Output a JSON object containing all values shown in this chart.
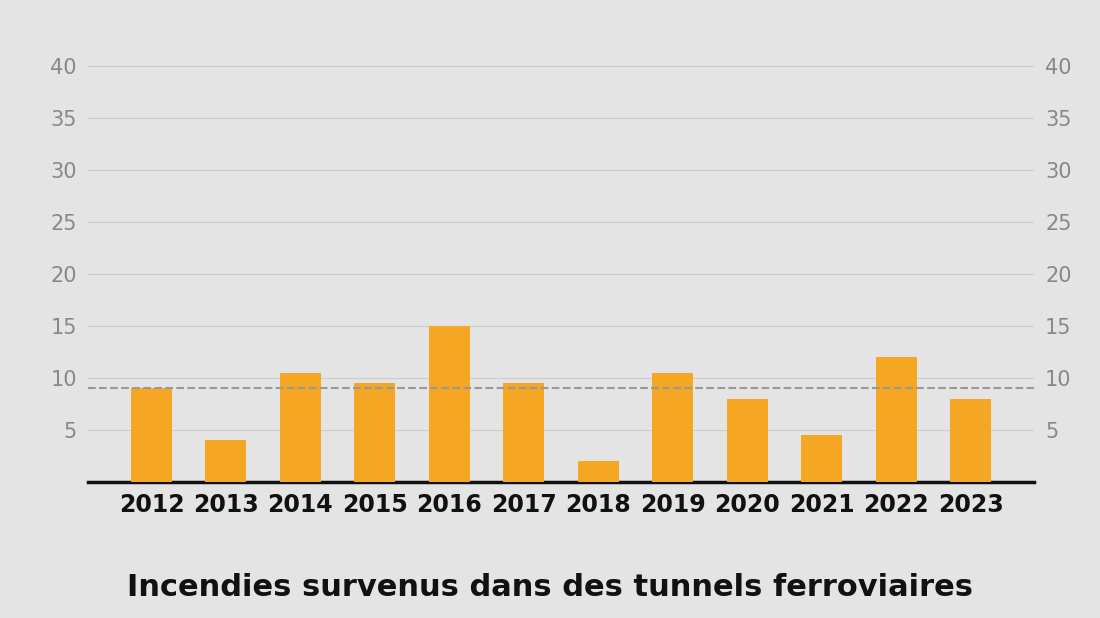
{
  "years": [
    2012,
    2013,
    2014,
    2015,
    2016,
    2017,
    2018,
    2019,
    2020,
    2021,
    2022,
    2023
  ],
  "values": [
    9,
    4,
    10.5,
    9.5,
    15,
    9.5,
    2,
    10.5,
    8,
    4.5,
    12,
    8
  ],
  "bar_color": "#F5A623",
  "dashed_line_y": 9.0,
  "dashed_line_color": "#999999",
  "background_color": "#E4E4E4",
  "title": "Incendies survenus dans des tunnels ferroviaires",
  "title_fontsize": 22,
  "title_fontweight": "bold",
  "yticks": [
    5,
    10,
    15,
    20,
    25,
    30,
    35,
    40
  ],
  "ylim": [
    0,
    44
  ],
  "grid_color": "#CCCCCC",
  "tick_label_color": "#888888",
  "xtick_label_color": "#111111",
  "tick_fontsize": 15,
  "xtick_fontsize": 17,
  "bar_width": 0.55
}
